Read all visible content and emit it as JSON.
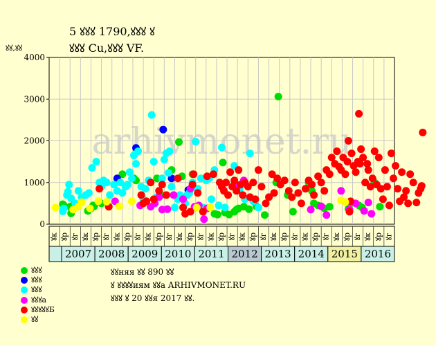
{
  "header": {
    "title_line1": "5 ꙋꙋꙋ 1790,ꙋꙋꙋ ꙋ",
    "title_line2": "ꙋꙋꙋ Cu,ꙋꙋꙋ VF."
  },
  "notes": {
    "line1": "ꙋꙋняя ꙋꙋ 890 ꙋꙋ",
    "line2": "ꙋ ꙋꙋꙋꙋиям ꙋꙋа ARHIVMONET.RU",
    "line3": "ꙋꙋꙋ ꙋ 20 ꙋꙋя 2017 ꙋꙋ."
  },
  "watermark": "arhivmonet.ru",
  "colors": {
    "background": "#ffffd0",
    "plot_bg": "#ffffd0",
    "grid": "#c8c8c8",
    "band_bg": "#c8f0e6",
    "green": "#00dd00",
    "blue": "#0000ff",
    "cyan": "#00ffff",
    "magenta": "#ff00ff",
    "red": "#ff0000",
    "yellow": "#ffff00"
  },
  "chart_data": {
    "type": "scatter",
    "ylabel": "ꙋꙋ,ꙋꙋ",
    "ylim": [
      0,
      4000
    ],
    "yticks": [
      0,
      1000,
      2000,
      3000,
      4000
    ],
    "grid": true,
    "half_years": [
      "ꙋк",
      "ꙋр",
      "ꙋг",
      "ꙋк",
      "ꙋр",
      "ꙋг",
      "ꙋк",
      "ꙋр",
      "ꙋг",
      "ꙋк",
      "ꙋр",
      "ꙋг",
      "ꙋк",
      "ꙋр",
      "ꙋг",
      "ꙋк",
      "ꙋр",
      "ꙋг",
      "ꙋк",
      "ꙋр",
      "ꙋг",
      "ꙋк",
      "ꙋр",
      "ꙋг",
      "ꙋк",
      "ꙋр",
      "ꙋг",
      "ꙋк",
      "ꙋр",
      "ꙋг",
      "ꙋк",
      "ꙋр",
      "ꙋг"
    ],
    "years": [
      "2007",
      "2008",
      "2009",
      "2010",
      "2011",
      "2012",
      "2013",
      "2014",
      "2015",
      "2016"
    ],
    "highlight_years": [
      "2012",
      "2015"
    ],
    "series": [
      {
        "name": "ꙋꙋꙋ",
        "color": "#00dd00",
        "points": [
          [
            0.8,
            480
          ],
          [
            0.9,
            450
          ],
          [
            1.5,
            420
          ],
          [
            1.6,
            260
          ],
          [
            1.8,
            450
          ],
          [
            3.2,
            320
          ],
          [
            3.5,
            380
          ],
          [
            3.7,
            450
          ],
          [
            3.8,
            430
          ],
          [
            4.5,
            500
          ],
          [
            5.2,
            420
          ],
          [
            6.5,
            1200
          ],
          [
            7.6,
            1100
          ],
          [
            7.8,
            1050
          ],
          [
            9.8,
            1100
          ],
          [
            10.2,
            700
          ],
          [
            11.2,
            1300
          ],
          [
            11.9,
            1970
          ],
          [
            12.2,
            1150
          ],
          [
            13.2,
            1200
          ],
          [
            15.3,
            250
          ],
          [
            15.6,
            230
          ],
          [
            16.1,
            1480
          ],
          [
            16.3,
            280
          ],
          [
            16.7,
            230
          ],
          [
            17.2,
            300
          ],
          [
            17.4,
            350
          ],
          [
            17.6,
            380
          ],
          [
            18.1,
            420
          ],
          [
            18.6,
            360
          ],
          [
            19.3,
            430
          ],
          [
            20.1,
            220
          ],
          [
            21.2,
            1000
          ],
          [
            21.4,
            3060
          ],
          [
            22.8,
            300
          ],
          [
            22.3,
            700
          ],
          [
            24.3,
            1000
          ],
          [
            24.6,
            800
          ],
          [
            24.8,
            500
          ],
          [
            25.2,
            450
          ],
          [
            25.8,
            380
          ],
          [
            26.3,
            420
          ],
          [
            28.1,
            370
          ],
          [
            28.3,
            500
          ],
          [
            29.1,
            450
          ],
          [
            29.4,
            400
          ],
          [
            30.6,
            1000
          ],
          [
            31.1,
            420
          ]
        ]
      },
      {
        "name": "ꙋꙋꙋ",
        "color": "#0000ff",
        "points": [
          [
            6.0,
            1100
          ],
          [
            7.8,
            1830
          ],
          [
            10.4,
            2270
          ],
          [
            11.2,
            1100
          ],
          [
            12.8,
            820
          ]
        ]
      },
      {
        "name": "ꙋꙋꙋ",
        "color": "#00ffff",
        "points": [
          [
            0.8,
            310
          ],
          [
            0.9,
            380
          ],
          [
            1.2,
            700
          ],
          [
            1.3,
            780
          ],
          [
            1.4,
            950
          ],
          [
            1.6,
            620
          ],
          [
            2.0,
            500
          ],
          [
            2.3,
            800
          ],
          [
            2.6,
            650
          ],
          [
            3.0,
            700
          ],
          [
            3.3,
            750
          ],
          [
            3.6,
            1350
          ],
          [
            4.0,
            1500
          ],
          [
            4.3,
            1000
          ],
          [
            4.5,
            900
          ],
          [
            4.7,
            1050
          ],
          [
            5.0,
            1000
          ],
          [
            5.3,
            700
          ],
          [
            5.7,
            950
          ],
          [
            6.0,
            800
          ],
          [
            6.3,
            1000
          ],
          [
            6.5,
            750
          ],
          [
            6.8,
            900
          ],
          [
            7.0,
            950
          ],
          [
            7.2,
            1250
          ],
          [
            7.4,
            1100
          ],
          [
            7.6,
            1650
          ],
          [
            7.8,
            1450
          ],
          [
            8.0,
            1750
          ],
          [
            8.3,
            900
          ],
          [
            8.5,
            600
          ],
          [
            8.7,
            850
          ],
          [
            9.0,
            1050
          ],
          [
            9.3,
            2620
          ],
          [
            9.5,
            1500
          ],
          [
            9.8,
            650
          ],
          [
            10.0,
            800
          ],
          [
            10.3,
            1100
          ],
          [
            10.5,
            1550
          ],
          [
            10.7,
            1700
          ],
          [
            10.9,
            1230
          ],
          [
            11.0,
            1750
          ],
          [
            11.2,
            900
          ],
          [
            11.5,
            400
          ],
          [
            11.8,
            600
          ],
          [
            12.0,
            700
          ],
          [
            12.5,
            500
          ],
          [
            12.7,
            700
          ],
          [
            12.9,
            750
          ],
          [
            13.2,
            1000
          ],
          [
            13.5,
            1980
          ],
          [
            13.7,
            850
          ],
          [
            14.0,
            1100
          ],
          [
            14.2,
            400
          ],
          [
            14.5,
            1050
          ],
          [
            14.8,
            1100
          ],
          [
            15.0,
            600
          ],
          [
            15.3,
            1300
          ],
          [
            15.7,
            450
          ],
          [
            16.0,
            1840
          ],
          [
            16.3,
            400
          ],
          [
            17.2,
            1400
          ],
          [
            17.7,
            850
          ],
          [
            18.2,
            600
          ],
          [
            18.7,
            1700
          ],
          [
            19.0,
            550
          ],
          [
            19.5,
            400
          ]
        ]
      },
      {
        "name": "ꙋꙋꙋа",
        "color": "#ff00ff",
        "points": [
          [
            5.8,
            550
          ],
          [
            8.2,
            450
          ],
          [
            9.2,
            420
          ],
          [
            9.6,
            500
          ],
          [
            10.0,
            650
          ],
          [
            10.3,
            350
          ],
          [
            10.8,
            360
          ],
          [
            11.4,
            700
          ],
          [
            12.3,
            600
          ],
          [
            13.0,
            850
          ],
          [
            13.4,
            420
          ],
          [
            13.8,
            450
          ],
          [
            14.3,
            120
          ],
          [
            14.6,
            380
          ],
          [
            17.5,
            920
          ],
          [
            18.1,
            1050
          ],
          [
            24.5,
            350
          ],
          [
            25.5,
            430
          ],
          [
            26.0,
            220
          ],
          [
            27.4,
            800
          ],
          [
            28.2,
            350
          ],
          [
            28.8,
            500
          ],
          [
            29.6,
            320
          ],
          [
            30.0,
            520
          ],
          [
            30.3,
            250
          ]
        ]
      },
      {
        "name": "ꙋꙋꙋꙋꙋБ",
        "color": "#ff0000",
        "points": [
          [
            4.3,
            850
          ],
          [
            5.2,
            420
          ],
          [
            8.3,
            700
          ],
          [
            8.5,
            500
          ],
          [
            8.8,
            550
          ],
          [
            9.2,
            1000
          ],
          [
            9.5,
            600
          ],
          [
            10.0,
            800
          ],
          [
            10.3,
            950
          ],
          [
            10.7,
            700
          ],
          [
            11.8,
            1100
          ],
          [
            12.3,
            400
          ],
          [
            12.5,
            250
          ],
          [
            13.0,
            300
          ],
          [
            13.2,
            950
          ],
          [
            13.3,
            1200
          ],
          [
            13.7,
            750
          ],
          [
            14.2,
            300
          ],
          [
            14.6,
            1150
          ],
          [
            15.2,
            1200
          ],
          [
            15.8,
            1000
          ],
          [
            16.0,
            900
          ],
          [
            16.2,
            800
          ],
          [
            16.4,
            1000
          ],
          [
            16.6,
            700
          ],
          [
            16.8,
            1250
          ],
          [
            17.0,
            900
          ],
          [
            17.2,
            1050
          ],
          [
            17.4,
            800
          ],
          [
            17.6,
            1300
          ],
          [
            17.8,
            950
          ],
          [
            18.0,
            700
          ],
          [
            18.2,
            1000
          ],
          [
            18.5,
            900
          ],
          [
            18.7,
            650
          ],
          [
            19.0,
            1000
          ],
          [
            19.2,
            600
          ],
          [
            19.5,
            1300
          ],
          [
            19.8,
            900
          ],
          [
            20.2,
            500
          ],
          [
            20.5,
            650
          ],
          [
            20.8,
            1200
          ],
          [
            21.0,
            750
          ],
          [
            21.3,
            1100
          ],
          [
            21.6,
            950
          ],
          [
            22.0,
            1050
          ],
          [
            22.4,
            800
          ],
          [
            22.7,
            650
          ],
          [
            23.0,
            1000
          ],
          [
            23.3,
            750
          ],
          [
            23.6,
            500
          ],
          [
            24.0,
            850
          ],
          [
            24.3,
            1050
          ],
          [
            24.6,
            950
          ],
          [
            24.8,
            700
          ],
          [
            25.2,
            1150
          ],
          [
            25.5,
            1000
          ],
          [
            25.8,
            800
          ],
          [
            26.0,
            1300
          ],
          [
            26.3,
            1200
          ],
          [
            26.5,
            1600
          ],
          [
            26.8,
            1450
          ],
          [
            27.0,
            1750
          ],
          [
            27.2,
            1380
          ],
          [
            27.4,
            1300
          ],
          [
            27.6,
            1600
          ],
          [
            27.8,
            1200
          ],
          [
            28.0,
            1500
          ],
          [
            28.1,
            2000
          ],
          [
            28.2,
            300
          ],
          [
            28.3,
            550
          ],
          [
            28.4,
            1700
          ],
          [
            28.6,
            1400
          ],
          [
            28.8,
            1250
          ],
          [
            29.0,
            1500
          ],
          [
            29.1,
            2650
          ],
          [
            29.2,
            1450
          ],
          [
            29.3,
            1800
          ],
          [
            29.5,
            1600
          ],
          [
            29.7,
            1000
          ],
          [
            29.9,
            1450
          ],
          [
            30.0,
            1300
          ],
          [
            30.2,
            900
          ],
          [
            30.4,
            1100
          ],
          [
            30.6,
            1750
          ],
          [
            30.8,
            950
          ],
          [
            31.0,
            1600
          ],
          [
            31.2,
            850
          ],
          [
            31.4,
            600
          ],
          [
            31.6,
            1300
          ],
          [
            31.8,
            900
          ],
          [
            32.0,
            450
          ],
          [
            32.2,
            1700
          ],
          [
            32.4,
            1100
          ],
          [
            32.6,
            1400
          ],
          [
            32.8,
            850
          ],
          [
            33.0,
            550
          ],
          [
            33.2,
            1250
          ],
          [
            33.4,
            650
          ],
          [
            33.6,
            800
          ],
          [
            33.8,
            500
          ],
          [
            34.0,
            1200
          ],
          [
            34.3,
            1000
          ],
          [
            34.6,
            520
          ],
          [
            34.8,
            750
          ],
          [
            35.0,
            850
          ],
          [
            35.1,
            920
          ],
          [
            35.2,
            2200
          ]
        ]
      },
      {
        "name": "ꙋꙋ",
        "color": "#ffff00",
        "points": [
          [
            0.1,
            400
          ],
          [
            1.8,
            350
          ],
          [
            2.3,
            420
          ],
          [
            2.6,
            530
          ],
          [
            3.4,
            380
          ],
          [
            4.2,
            550
          ],
          [
            5.0,
            540
          ],
          [
            6.2,
            430
          ],
          [
            7.4,
            550
          ],
          [
            13.6,
            400
          ],
          [
            14.9,
            400
          ],
          [
            27.4,
            570
          ],
          [
            27.8,
            530
          ]
        ]
      }
    ]
  }
}
